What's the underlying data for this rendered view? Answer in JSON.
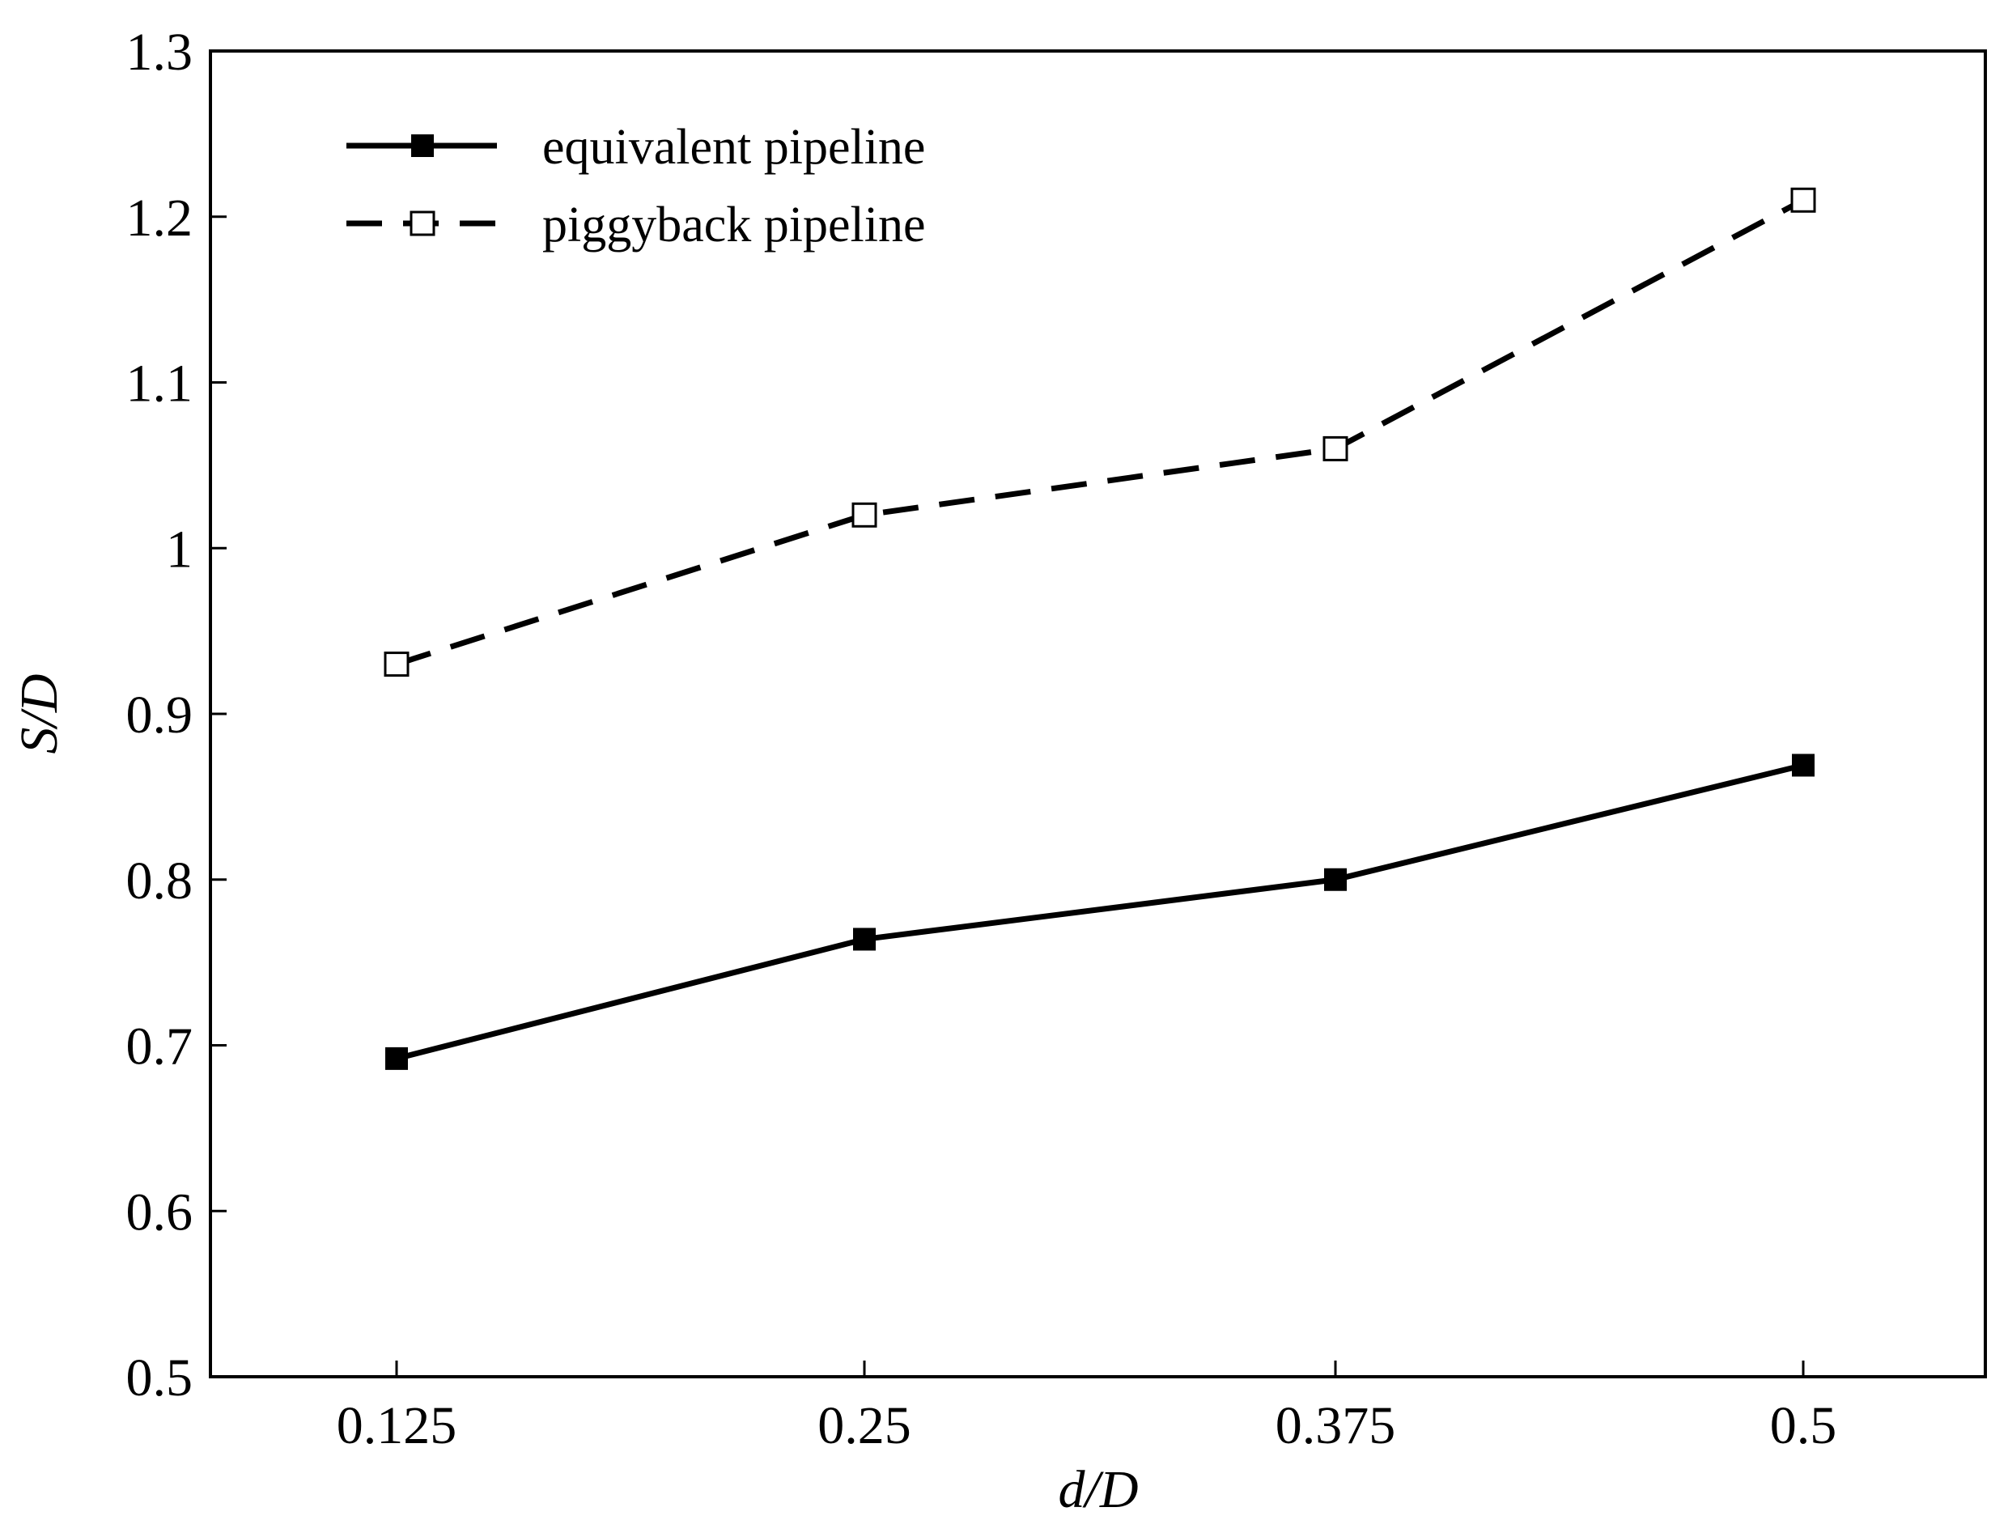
{
  "chart_data": {
    "type": "line",
    "xlabel": "d/D",
    "ylabel": "S/D",
    "x": [
      0.125,
      0.25,
      0.375,
      0.5
    ],
    "x_tick_labels": [
      "0.125",
      "0.25",
      "0.375",
      "0.5"
    ],
    "ylim": [
      0.5,
      1.3
    ],
    "y_ticks": [
      0.5,
      0.6,
      0.7,
      0.8,
      0.9,
      1.0,
      1.1,
      1.2,
      1.3
    ],
    "y_tick_labels": [
      "0.5",
      "0.6",
      "0.7",
      "0.8",
      "0.9",
      "1",
      "1.1",
      "1.2",
      "1.3"
    ],
    "grid": false,
    "legend_position": "top-left",
    "series": [
      {
        "name": "equivalent pipeline",
        "values": [
          0.692,
          0.764,
          0.8,
          0.869
        ],
        "line_style": "solid",
        "marker": "filled-square",
        "color": "#000000"
      },
      {
        "name": "piggyback pipeline",
        "values": [
          0.93,
          1.02,
          1.06,
          1.21
        ],
        "line_style": "dashed",
        "marker": "open-square",
        "color": "#000000"
      }
    ]
  }
}
